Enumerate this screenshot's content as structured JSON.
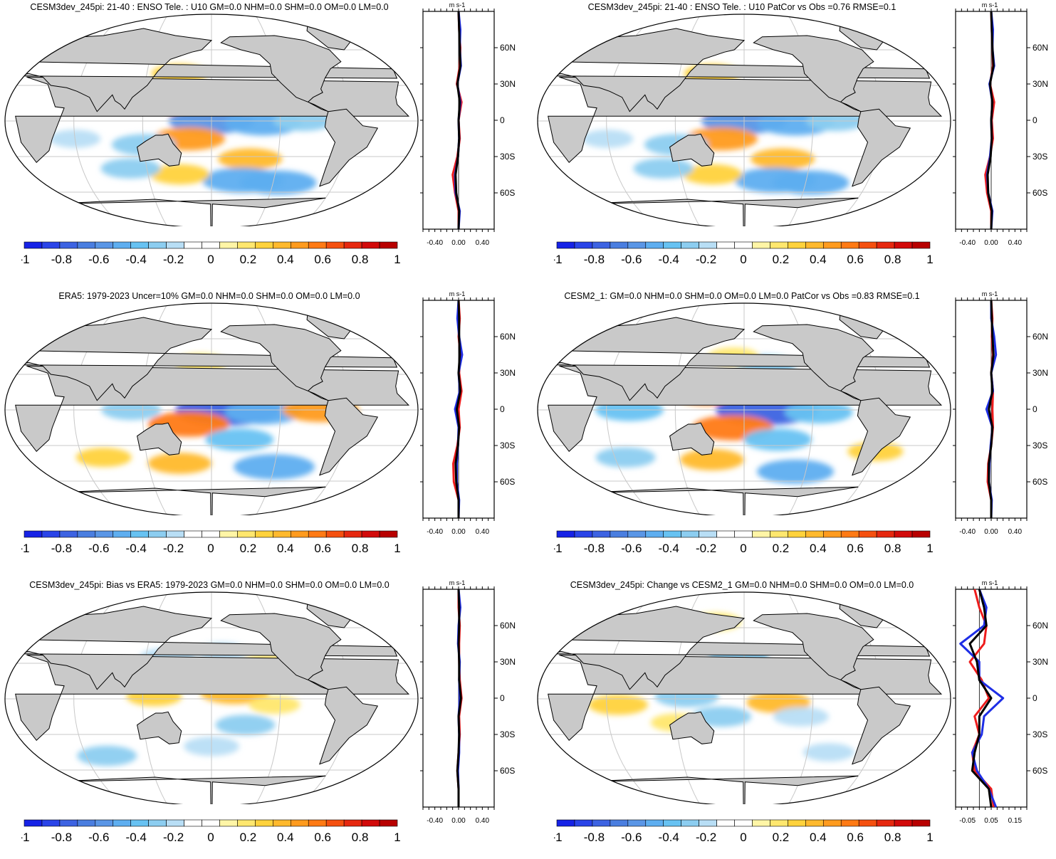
{
  "colorbar": {
    "labels": [
      "-1",
      "-0.8",
      "-0.6",
      "-0.4",
      "-0.2",
      "0",
      "0.2",
      "0.4",
      "0.6",
      "0.8",
      "1"
    ],
    "colors": [
      "#1622e6",
      "#2a44e8",
      "#3d63e2",
      "#4a7ee0",
      "#5a96e6",
      "#5eaef0",
      "#67c2f2",
      "#8ccdf0",
      "#b8def5",
      "#ffffff",
      "#ffffff",
      "#fff5a6",
      "#ffe76e",
      "#ffd23c",
      "#ffb92d",
      "#ff9b1e",
      "#ff7a14",
      "#f5500f",
      "#e6280f",
      "#d20a0a",
      "#b80000"
    ]
  },
  "colors": {
    "land": "#c9c9c9",
    "grid": "#c8c8c8",
    "coast": "#000000",
    "pos": "#ffd23c",
    "neg": "#5eaef0",
    "series_red": "#ee1c1c",
    "series_blue": "#1e2ee6",
    "series_black": "#000000"
  },
  "panels": [
    {
      "title": "CESM3dev_245pi: 21-40 : ENSO Tele. : U10 GM=0.0 NHM=0.0 SHM=0.0 OM=0.0 LM=0.0"
    },
    {
      "title": "CESM3dev_245pi: 21-40 : ENSO Tele. : U10 PatCor vs Obs =0.76 RMSE=0.1"
    },
    {
      "title": "ERA5: 1979-2023 Uncer=10% GM=0.0 NHM=0.0 SHM=0.0 OM=0.0 LM=0.0"
    },
    {
      "title": "CESM2_1: GM=0.0 NHM=0.0 SHM=0.0 OM=0.0 LM=0.0 PatCor vs Obs =0.83 RMSE=0.1"
    },
    {
      "title": "CESM3dev_245pi: Bias vs ERA5: 1979-2023 GM=0.0 NHM=0.0 SHM=0.0 OM=0.0 LM=0.0"
    },
    {
      "title": "CESM3dev_245pi: Change vs CESM2_1 GM=0.0 NHM=0.0 SHM=0.0 OM=0.0 LM=0.0"
    }
  ],
  "chart_data": [
    {
      "type": "heatmap",
      "panel": 0,
      "title": "CESM3dev_245pi: 21-40 : ENSO Tele. : U10 GM=0.0 NHM=0.0 SHM=0.0 OM=0.0 LM=0.0",
      "clim": [
        -1.0,
        1.0
      ],
      "lat_ticks": [
        "60N",
        "30N",
        "0",
        "30S",
        "60S"
      ],
      "anomalies": [
        {
          "lon": 170,
          "lat": 12,
          "v": 0.5
        },
        {
          "lon": 195,
          "lat": 15,
          "v": 0.4
        },
        {
          "lon": 150,
          "lat": 20,
          "v": 0.3
        },
        {
          "lon": 220,
          "lat": 22,
          "v": 0.25
        },
        {
          "lon": 180,
          "lat": 0,
          "v": -0.6
        },
        {
          "lon": 225,
          "lat": -2,
          "v": -0.5
        },
        {
          "lon": 260,
          "lat": 0,
          "v": -0.3
        },
        {
          "lon": 160,
          "lat": -15,
          "v": 0.45
        },
        {
          "lon": 215,
          "lat": -32,
          "v": 0.35
        },
        {
          "lon": 120,
          "lat": -20,
          "v": -0.35
        },
        {
          "lon": 60,
          "lat": -15,
          "v": -0.2
        },
        {
          "lon": 210,
          "lat": -50,
          "v": -0.55
        },
        {
          "lon": 245,
          "lat": -52,
          "v": -0.5
        },
        {
          "lon": 150,
          "lat": -45,
          "v": 0.3
        },
        {
          "lon": 150,
          "lat": 40,
          "v": 0.25
        },
        {
          "lon": 105,
          "lat": -40,
          "v": -0.3
        }
      ]
    },
    {
      "type": "line",
      "panel": 0,
      "xlabel": "m s-1",
      "x_ticks": [
        "-0.40",
        "0.00",
        "0.40"
      ],
      "xlim": [
        -0.6,
        0.6
      ],
      "lat_ticks": [
        "60N",
        "30N",
        "0",
        "30S",
        "60S"
      ],
      "lat": [
        90,
        75,
        60,
        45,
        30,
        15,
        0,
        -15,
        -30,
        -45,
        -60,
        -75,
        -90
      ],
      "series": [
        {
          "name": "red",
          "values": [
            0.0,
            0.01,
            0.03,
            0.02,
            -0.03,
            0.05,
            0.0,
            0.02,
            -0.02,
            -0.1,
            -0.06,
            0.0,
            0.0
          ]
        },
        {
          "name": "blue",
          "values": [
            0.0,
            0.03,
            0.02,
            0.04,
            -0.02,
            0.03,
            0.0,
            0.01,
            -0.01,
            -0.06,
            -0.05,
            0.02,
            0.0
          ]
        },
        {
          "name": "black",
          "values": [
            0.0,
            0.01,
            0.02,
            0.03,
            -0.02,
            0.02,
            0.0,
            0.01,
            -0.01,
            -0.05,
            -0.04,
            0.01,
            0.0
          ]
        }
      ]
    },
    {
      "type": "heatmap",
      "panel": 1,
      "title": "CESM3dev_245pi: 21-40 : ENSO Tele. : U10 PatCor vs Obs =0.76 RMSE=0.1",
      "clim": [
        -1.0,
        1.0
      ],
      "lat_ticks": [
        "60N",
        "30N",
        "0",
        "30S",
        "60S"
      ],
      "anomalies": [
        {
          "lon": 170,
          "lat": 12,
          "v": 0.5
        },
        {
          "lon": 195,
          "lat": 15,
          "v": 0.4
        },
        {
          "lon": 150,
          "lat": 20,
          "v": 0.3
        },
        {
          "lon": 220,
          "lat": 22,
          "v": 0.25
        },
        {
          "lon": 180,
          "lat": 0,
          "v": -0.6
        },
        {
          "lon": 225,
          "lat": -2,
          "v": -0.5
        },
        {
          "lon": 260,
          "lat": 0,
          "v": -0.3
        },
        {
          "lon": 160,
          "lat": -15,
          "v": 0.45
        },
        {
          "lon": 215,
          "lat": -32,
          "v": 0.35
        },
        {
          "lon": 120,
          "lat": -20,
          "v": -0.35
        },
        {
          "lon": 60,
          "lat": -15,
          "v": -0.2
        },
        {
          "lon": 210,
          "lat": -50,
          "v": -0.55
        },
        {
          "lon": 245,
          "lat": -52,
          "v": -0.5
        },
        {
          "lon": 150,
          "lat": -45,
          "v": 0.3
        },
        {
          "lon": 150,
          "lat": 40,
          "v": 0.25
        },
        {
          "lon": 105,
          "lat": -40,
          "v": -0.3
        }
      ]
    },
    {
      "type": "line",
      "panel": 1,
      "xlabel": "m s-1",
      "x_ticks": [
        "-0.40",
        "0.00",
        "0.40"
      ],
      "xlim": [
        -0.6,
        0.6
      ],
      "lat_ticks": [
        "60N",
        "30N",
        "0",
        "30S",
        "60S"
      ],
      "lat": [
        90,
        75,
        60,
        45,
        30,
        15,
        0,
        -15,
        -30,
        -45,
        -60,
        -75,
        -90
      ],
      "series": [
        {
          "name": "red",
          "values": [
            0.0,
            0.01,
            0.02,
            0.03,
            -0.02,
            0.05,
            0.01,
            0.03,
            -0.02,
            -0.1,
            -0.07,
            0.0,
            0.0
          ]
        },
        {
          "name": "blue",
          "values": [
            0.0,
            0.03,
            0.02,
            0.05,
            -0.03,
            0.02,
            0.0,
            0.01,
            -0.02,
            -0.07,
            -0.05,
            0.02,
            0.0
          ]
        },
        {
          "name": "black",
          "values": [
            0.0,
            0.01,
            0.02,
            0.04,
            -0.02,
            0.02,
            0.0,
            0.01,
            -0.01,
            -0.06,
            -0.05,
            0.01,
            0.0
          ]
        }
      ]
    },
    {
      "type": "heatmap",
      "panel": 2,
      "title": "ERA5: 1979-2023 Uncer=10% GM=0.0 NHM=0.0 SHM=0.0 OM=0.0 LM=0.0",
      "clim": [
        -1.0,
        1.0
      ],
      "lat_ticks": [
        "60N",
        "30N",
        "0",
        "30S",
        "60S"
      ],
      "anomalies": [
        {
          "lon": 150,
          "lat": 18,
          "v": 0.45
        },
        {
          "lon": 185,
          "lat": 18,
          "v": 0.35
        },
        {
          "lon": 195,
          "lat": 0,
          "v": -0.85
        },
        {
          "lon": 225,
          "lat": -2,
          "v": -0.5
        },
        {
          "lon": 275,
          "lat": 0,
          "v": 0.5
        },
        {
          "lon": 160,
          "lat": -12,
          "v": 0.55
        },
        {
          "lon": 205,
          "lat": -25,
          "v": -0.4
        },
        {
          "lon": 240,
          "lat": -48,
          "v": -0.55
        },
        {
          "lon": 150,
          "lat": -45,
          "v": 0.35
        },
        {
          "lon": 80,
          "lat": -40,
          "v": 0.25
        },
        {
          "lon": 170,
          "lat": 40,
          "v": 0.2
        },
        {
          "lon": 240,
          "lat": 15,
          "v": -0.25
        },
        {
          "lon": 110,
          "lat": 0,
          "v": -0.3
        }
      ]
    },
    {
      "type": "line",
      "panel": 2,
      "xlabel": "m s-1",
      "x_ticks": [
        "-0.40",
        "0.00",
        "0.40"
      ],
      "xlim": [
        -0.6,
        0.6
      ],
      "lat_ticks": [
        "60N",
        "30N",
        "0",
        "30S",
        "60S"
      ],
      "lat": [
        90,
        75,
        60,
        45,
        30,
        15,
        0,
        -15,
        -30,
        -45,
        -60,
        -75,
        -90
      ],
      "series": [
        {
          "name": "red",
          "values": [
            0.0,
            0.02,
            0.0,
            0.03,
            0.01,
            0.05,
            0.0,
            0.02,
            -0.02,
            -0.09,
            -0.08,
            0.0,
            0.0
          ]
        },
        {
          "name": "blue",
          "values": [
            0.0,
            -0.02,
            0.01,
            0.06,
            0.0,
            0.02,
            -0.06,
            0.0,
            -0.01,
            -0.03,
            -0.03,
            0.01,
            0.0
          ]
        },
        {
          "name": "black",
          "values": [
            0.0,
            0.01,
            0.01,
            0.02,
            0.0,
            0.03,
            -0.03,
            0.01,
            -0.01,
            -0.05,
            -0.04,
            0.0,
            0.0
          ]
        }
      ]
    },
    {
      "type": "heatmap",
      "panel": 3,
      "title": "CESM2_1: GM=0.0 NHM=0.0 SHM=0.0 OM=0.0 LM=0.0 PatCor vs Obs =0.83 RMSE=0.1",
      "clim": [
        -1.0,
        1.0
      ],
      "lat_ticks": [
        "60N",
        "30N",
        "0",
        "30S",
        "60S"
      ],
      "anomalies": [
        {
          "lon": 150,
          "lat": 15,
          "v": 0.6
        },
        {
          "lon": 185,
          "lat": 18,
          "v": 0.35
        },
        {
          "lon": 200,
          "lat": 0,
          "v": -0.8
        },
        {
          "lon": 245,
          "lat": -2,
          "v": -0.4
        },
        {
          "lon": 170,
          "lat": -15,
          "v": 0.55
        },
        {
          "lon": 210,
          "lat": -25,
          "v": -0.4
        },
        {
          "lon": 80,
          "lat": 0,
          "v": -0.4
        },
        {
          "lon": 230,
          "lat": -52,
          "v": -0.5
        },
        {
          "lon": 150,
          "lat": -42,
          "v": 0.35
        },
        {
          "lon": 70,
          "lat": -40,
          "v": -0.3
        },
        {
          "lon": 200,
          "lat": 38,
          "v": -0.3
        },
        {
          "lon": 170,
          "lat": 45,
          "v": 0.2
        },
        {
          "lon": 300,
          "lat": -35,
          "v": 0.25
        }
      ]
    },
    {
      "type": "line",
      "panel": 3,
      "xlabel": "m s-1",
      "x_ticks": [
        "-0.40",
        "0.00",
        "0.40"
      ],
      "xlim": [
        -0.6,
        0.6
      ],
      "lat_ticks": [
        "60N",
        "30N",
        "0",
        "30S",
        "60S"
      ],
      "lat": [
        90,
        75,
        60,
        45,
        30,
        15,
        0,
        -15,
        -30,
        -45,
        -60,
        -75,
        -90
      ],
      "series": [
        {
          "name": "red",
          "values": [
            0.0,
            0.02,
            0.01,
            0.03,
            0.0,
            0.03,
            0.02,
            0.03,
            0.0,
            -0.05,
            -0.06,
            0.0,
            0.0
          ]
        },
        {
          "name": "blue",
          "values": [
            0.0,
            0.0,
            0.05,
            0.08,
            0.0,
            0.03,
            -0.08,
            0.02,
            -0.01,
            -0.03,
            -0.04,
            0.01,
            0.0
          ]
        },
        {
          "name": "black",
          "values": [
            0.0,
            0.01,
            0.02,
            0.04,
            0.0,
            0.02,
            -0.04,
            0.02,
            0.0,
            -0.04,
            -0.04,
            0.0,
            0.0
          ]
        }
      ]
    },
    {
      "type": "heatmap",
      "panel": 4,
      "title": "CESM3dev_245pi: Bias vs ERA5: 1979-2023 GM=0.0 NHM=0.0 SHM=0.0 OM=0.0 LM=0.0",
      "clim": [
        -1.0,
        1.0
      ],
      "lat_ticks": [
        "60N",
        "30N",
        "0",
        "30S",
        "60S"
      ],
      "anomalies": [
        {
          "lon": 200,
          "lat": 5,
          "v": 0.4
        },
        {
          "lon": 130,
          "lat": 2,
          "v": 0.25
        },
        {
          "lon": 235,
          "lat": -5,
          "v": 0.2
        },
        {
          "lon": 210,
          "lat": -22,
          "v": -0.3
        },
        {
          "lon": 80,
          "lat": -48,
          "v": -0.3
        },
        {
          "lon": 180,
          "lat": -40,
          "v": -0.25
        },
        {
          "lon": 140,
          "lat": 35,
          "v": -0.25
        },
        {
          "lon": 190,
          "lat": 40,
          "v": -0.2
        },
        {
          "lon": 270,
          "lat": 15,
          "v": -0.25
        },
        {
          "lon": 230,
          "lat": 30,
          "v": 0.2
        }
      ]
    },
    {
      "type": "line",
      "panel": 4,
      "xlabel": "m s-1",
      "x_ticks": [
        "-0.40",
        "0.00",
        "0.40"
      ],
      "xlim": [
        -0.6,
        0.6
      ],
      "lat_ticks": [
        "60N",
        "30N",
        "0",
        "30S",
        "60S"
      ],
      "lat": [
        90,
        75,
        60,
        45,
        30,
        15,
        0,
        -15,
        -30,
        -45,
        -60,
        -75,
        -90
      ],
      "series": [
        {
          "name": "red",
          "values": [
            0.0,
            0.0,
            0.02,
            0.01,
            0.01,
            0.02,
            0.05,
            0.01,
            0.02,
            0.0,
            -0.02,
            0.0,
            0.0
          ]
        },
        {
          "name": "blue",
          "values": [
            0.0,
            0.03,
            0.0,
            -0.01,
            0.02,
            0.01,
            0.02,
            0.0,
            0.01,
            0.01,
            -0.01,
            0.0,
            0.0
          ]
        },
        {
          "name": "black",
          "values": [
            0.0,
            0.01,
            0.01,
            0.0,
            0.01,
            0.01,
            0.04,
            0.0,
            0.01,
            0.0,
            -0.02,
            0.0,
            0.0
          ]
        }
      ]
    },
    {
      "type": "heatmap",
      "panel": 5,
      "title": "CESM3dev_245pi: Change vs CESM2_1 GM=0.0 NHM=0.0 SHM=0.0 OM=0.0 LM=0.0",
      "clim": [
        -1.0,
        1.0
      ],
      "lat_ticks": [
        "60N",
        "30N",
        "0",
        "30S",
        "60S"
      ],
      "anomalies": [
        {
          "lon": 200,
          "lat": 20,
          "v": 0.45
        },
        {
          "lon": 210,
          "lat": -3,
          "v": 0.35
        },
        {
          "lon": 175,
          "lat": 35,
          "v": -0.3
        },
        {
          "lon": 130,
          "lat": 2,
          "v": -0.35
        },
        {
          "lon": 70,
          "lat": -5,
          "v": 0.3
        },
        {
          "lon": 160,
          "lat": -15,
          "v": -0.3
        },
        {
          "lon": 230,
          "lat": -15,
          "v": -0.25
        },
        {
          "lon": 120,
          "lat": -20,
          "v": 0.2
        },
        {
          "lon": 260,
          "lat": -45,
          "v": -0.2
        },
        {
          "lon": 150,
          "lat": 65,
          "v": 0.2
        }
      ]
    },
    {
      "type": "line",
      "panel": 5,
      "xlabel": "m s-1",
      "x_ticks": [
        "-0.05",
        "0.05",
        "0.15"
      ],
      "xlim": [
        -0.1,
        0.2
      ],
      "lat_ticks": [
        "60N",
        "30N",
        "0",
        "30S",
        "60S"
      ],
      "lat": [
        90,
        75,
        60,
        45,
        30,
        15,
        0,
        -15,
        -30,
        -45,
        -60,
        -75,
        -90
      ],
      "series": [
        {
          "name": "red",
          "values": [
            -0.02,
            0.0,
            0.03,
            0.02,
            -0.04,
            0.01,
            0.04,
            -0.02,
            0.0,
            -0.03,
            -0.02,
            0.05,
            0.06
          ]
        },
        {
          "name": "blue",
          "values": [
            0.0,
            0.03,
            0.02,
            -0.08,
            0.0,
            0.0,
            0.1,
            0.02,
            0.01,
            -0.03,
            -0.01,
            0.04,
            0.07
          ]
        },
        {
          "name": "black",
          "values": [
            0.0,
            0.02,
            0.03,
            -0.04,
            -0.01,
            0.0,
            0.05,
            0.0,
            0.0,
            -0.02,
            -0.03,
            0.04,
            0.05
          ]
        }
      ]
    }
  ]
}
